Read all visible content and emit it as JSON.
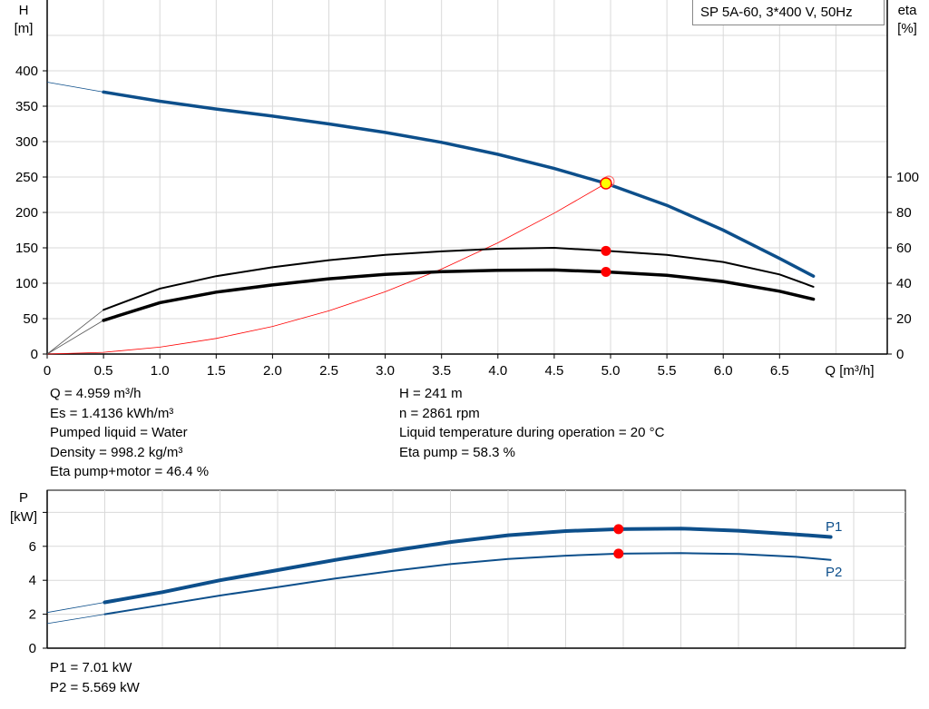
{
  "chart_data": [
    {
      "type": "line",
      "legend_title": "SP 5A-60, 3*400 V, 50Hz",
      "legend_placement": "top-right",
      "grid": true,
      "x_axis": {
        "label": "Q [m³/h]",
        "range": [
          0,
          7.45
        ],
        "ticks": [
          "0",
          "0.5",
          "1.0",
          "1.5",
          "2.0",
          "2.5",
          "3.0",
          "3.5",
          "4.0",
          "4.5",
          "5.0",
          "5.5",
          "6.0",
          "6.5"
        ]
      },
      "y_axis_left": {
        "label_line1": "H",
        "label_line2": "[m]",
        "range": [
          0,
          500
        ],
        "ticks": [
          "0",
          "50",
          "100",
          "150",
          "200",
          "250",
          "300",
          "350",
          "400"
        ]
      },
      "y_axis_right": {
        "label_line1": "eta",
        "label_line2": "[%]",
        "range": [
          0,
          200
        ],
        "ticks": [
          "0",
          "20",
          "40",
          "60",
          "80",
          "100"
        ]
      },
      "series": [
        {
          "key": "H",
          "axis": "left",
          "color": "#0d4f8b",
          "x": [
            0.5,
            1.0,
            1.5,
            2.0,
            2.5,
            3.0,
            3.5,
            4.0,
            4.5,
            4.959,
            5.5,
            6.0,
            6.5,
            6.8
          ],
          "y": [
            370,
            357,
            346,
            336,
            325,
            313,
            299,
            282,
            262,
            241,
            210,
            175,
            135,
            110
          ],
          "extension": {
            "x": [
              0,
              0.5
            ],
            "y": [
              384,
              370
            ]
          }
        },
        {
          "key": "eta_pump",
          "axis": "right",
          "color": "#000000",
          "x": [
            0.5,
            1.0,
            1.5,
            2.0,
            2.5,
            3.0,
            3.5,
            4.0,
            4.5,
            4.959,
            5.5,
            6.0,
            6.5,
            6.8
          ],
          "y": [
            25,
            37,
            44,
            49,
            53,
            56,
            58,
            59.5,
            60,
            58.3,
            56,
            52,
            45,
            38
          ],
          "extension": {
            "x": [
              0,
              0.5
            ],
            "y": [
              0,
              25
            ]
          }
        },
        {
          "key": "eta_pump_motor",
          "axis": "right",
          "color": "#000000",
          "x": [
            0.5,
            1.0,
            1.5,
            2.0,
            2.5,
            3.0,
            3.5,
            4.0,
            4.5,
            4.959,
            5.5,
            6.0,
            6.5,
            6.8
          ],
          "y": [
            19,
            29,
            35,
            39,
            42.5,
            45,
            46.5,
            47.3,
            47.5,
            46.4,
            44.5,
            41,
            35.5,
            31
          ],
          "extension": {
            "x": [
              0,
              0.5
            ],
            "y": [
              0,
              19
            ]
          }
        },
        {
          "key": "system_curve",
          "axis": "left",
          "color": "#ff0000",
          "x": [
            0,
            0.5,
            1,
            1.5,
            2,
            2.5,
            3,
            3.5,
            4,
            4.5,
            4.959
          ],
          "y": [
            0,
            2.5,
            9.8,
            22,
            39,
            61,
            88,
            120,
            157,
            199,
            241
          ]
        }
      ],
      "duty_point": {
        "Q": 4.959,
        "H": 241,
        "eta_pump": 58.3,
        "eta_pump_motor": 46.4
      }
    },
    {
      "type": "line",
      "grid": true,
      "x_axis": {
        "range": [
          0,
          7.45
        ]
      },
      "y_axis_left": {
        "label_line1": "P",
        "label_line2": "[kW]",
        "range": [
          0,
          9.3
        ],
        "ticks": [
          "0",
          "2",
          "4",
          "6"
        ]
      },
      "series": [
        {
          "name": "P1",
          "color": "#0d4f8b",
          "x": [
            0.5,
            1,
            1.5,
            2,
            2.5,
            3,
            3.5,
            4,
            4.5,
            4.959,
            5.5,
            6,
            6.5,
            6.8
          ],
          "y": [
            2.7,
            3.3,
            4.0,
            4.6,
            5.2,
            5.75,
            6.25,
            6.65,
            6.9,
            7.01,
            7.05,
            6.92,
            6.7,
            6.55
          ],
          "extension": {
            "x": [
              0,
              0.5
            ],
            "y": [
              2.1,
              2.7
            ]
          }
        },
        {
          "name": "P2",
          "color": "#0d4f8b",
          "x": [
            0.5,
            1,
            1.5,
            2,
            2.5,
            3,
            3.5,
            4,
            4.5,
            4.959,
            5.5,
            6,
            6.5,
            6.8
          ],
          "y": [
            2.0,
            2.55,
            3.1,
            3.6,
            4.1,
            4.55,
            4.95,
            5.25,
            5.45,
            5.569,
            5.6,
            5.55,
            5.38,
            5.2
          ],
          "extension": {
            "x": [
              0,
              0.5
            ],
            "y": [
              1.45,
              2.0
            ]
          }
        }
      ],
      "duty_point": {
        "Q": 4.959,
        "P1": 7.01,
        "P2": 5.569
      }
    }
  ],
  "info": {
    "left": [
      "Q = 4.959 m³/h",
      "Es = 1.4136 kWh/m³",
      "Pumped liquid = Water",
      "Density = 998.2 kg/m³",
      "Eta pump+motor = 46.4 %"
    ],
    "right": [
      "H = 241 m",
      "n = 2861 rpm",
      "Liquid temperature during operation = 20 °C",
      "Eta pump = 58.3 %"
    ],
    "power": [
      "P1 = 7.01 kW",
      "P2 = 5.569 kW"
    ]
  },
  "colors": {
    "curve_blue": "#0d4f8b",
    "duty_marker": "#ff0000",
    "operating_point_fill": "#ffff00",
    "grid": "#d9d9d9"
  }
}
